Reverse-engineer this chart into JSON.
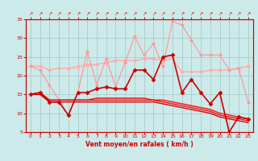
{
  "xlabel": "Vent moyen/en rafales ( km/h )",
  "x": [
    0,
    1,
    2,
    3,
    4,
    5,
    6,
    7,
    8,
    9,
    10,
    11,
    12,
    13,
    14,
    15,
    16,
    17,
    18,
    19,
    20,
    21,
    22,
    23
  ],
  "lines": [
    {
      "label": "light_pink_diamond",
      "y": [
        22.5,
        22.5,
        21.5,
        22.0,
        22.0,
        22.0,
        22.5,
        23.0,
        23.5,
        24.0,
        24.0,
        24.0,
        24.5,
        24.5,
        24.0,
        24.5,
        21.0,
        21.0,
        21.0,
        21.5,
        21.5,
        21.5,
        22.0,
        22.5
      ],
      "color": "#ffbbbb",
      "linewidth": 0.9,
      "marker": "D",
      "markersize": 2.0,
      "zorder": 2
    },
    {
      "label": "light_pink_cross",
      "y": [
        22.5,
        22.5,
        21.5,
        22.0,
        22.0,
        22.5,
        23.0,
        23.0,
        23.5,
        24.0,
        24.0,
        24.0,
        24.5,
        24.5,
        24.0,
        24.5,
        21.0,
        21.0,
        21.0,
        21.5,
        21.5,
        21.5,
        22.0,
        22.5
      ],
      "color": "#ffaaaa",
      "linewidth": 0.9,
      "marker": "P",
      "markersize": 2.5,
      "zorder": 2
    },
    {
      "label": "pink_diamond_high",
      "y": [
        22.5,
        21.5,
        17.5,
        13.5,
        9.5,
        15.5,
        26.5,
        17.5,
        24.5,
        17.0,
        23.5,
        30.5,
        25.5,
        28.5,
        22.5,
        34.5,
        33.5,
        29.5,
        25.5,
        25.5,
        25.5,
        21.5,
        22.0,
        13.0
      ],
      "color": "#ff9999",
      "linewidth": 0.9,
      "marker": "D",
      "markersize": 2.0,
      "zorder": 3
    },
    {
      "label": "dark_red_diamond",
      "y": [
        15.0,
        15.5,
        13.0,
        13.0,
        9.5,
        15.5,
        15.5,
        16.5,
        17.0,
        16.5,
        16.5,
        21.5,
        21.5,
        19.0,
        25.0,
        25.5,
        15.5,
        19.0,
        15.5,
        12.5,
        15.5,
        5.0,
        9.0,
        8.5
      ],
      "color": "#cc0000",
      "linewidth": 1.2,
      "marker": "D",
      "markersize": 2.5,
      "zorder": 5
    },
    {
      "label": "red_flat1",
      "y": [
        15.0,
        15.5,
        13.5,
        13.5,
        13.5,
        13.5,
        13.5,
        14.0,
        14.0,
        14.0,
        14.0,
        14.0,
        14.0,
        13.5,
        13.5,
        13.0,
        12.5,
        12.0,
        11.5,
        11.0,
        10.0,
        9.5,
        9.0,
        8.5
      ],
      "color": "#ff2222",
      "linewidth": 1.2,
      "marker": null,
      "markersize": 0,
      "zorder": 4
    },
    {
      "label": "red_flat2",
      "y": [
        15.0,
        15.5,
        13.5,
        13.5,
        13.5,
        13.5,
        13.5,
        13.5,
        13.5,
        13.5,
        13.5,
        13.5,
        13.5,
        13.5,
        13.0,
        12.5,
        12.0,
        11.5,
        11.0,
        10.5,
        9.5,
        9.0,
        8.5,
        8.0
      ],
      "color": "#ee1111",
      "linewidth": 1.0,
      "marker": null,
      "markersize": 0,
      "zorder": 4
    },
    {
      "label": "red_flat3",
      "y": [
        15.0,
        15.0,
        13.0,
        13.0,
        13.0,
        13.0,
        13.0,
        13.0,
        13.0,
        13.0,
        13.0,
        13.0,
        13.0,
        13.0,
        12.5,
        12.0,
        11.5,
        11.0,
        10.5,
        10.0,
        9.0,
        8.5,
        8.0,
        7.5
      ],
      "color": "#dd0000",
      "linewidth": 1.0,
      "marker": null,
      "markersize": 0,
      "zorder": 4
    }
  ],
  "ylim": [
    5,
    35
  ],
  "yticks": [
    5,
    10,
    15,
    20,
    25,
    30,
    35
  ],
  "xlim": [
    -0.5,
    23.5
  ],
  "bg_color": "#cceaea",
  "grid_color": "#aacccc",
  "tick_color": "#cc0000",
  "label_color": "#cc0000",
  "arrow_char": "↗"
}
